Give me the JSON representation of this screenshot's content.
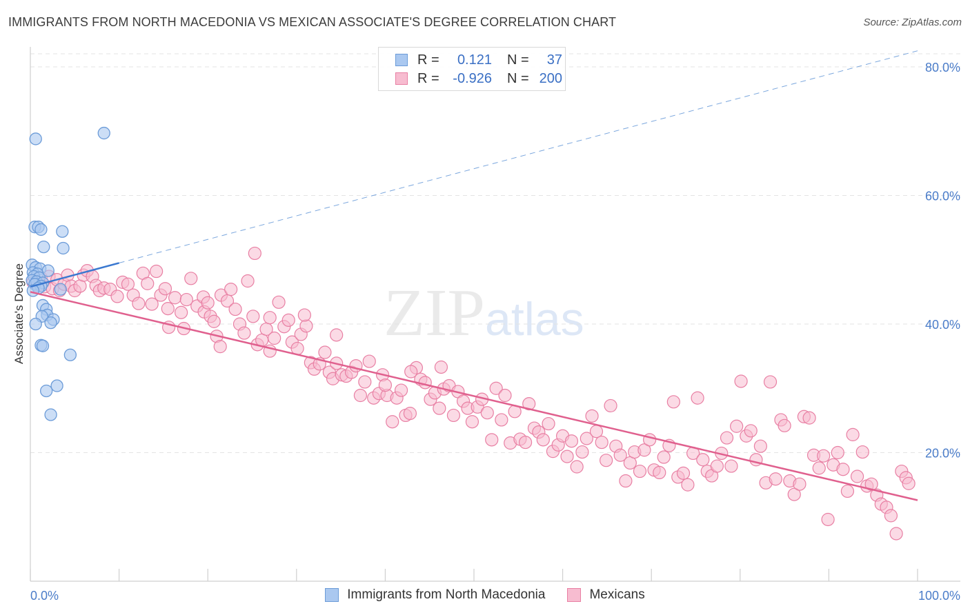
{
  "title": "IMMIGRANTS FROM NORTH MACEDONIA VS MEXICAN ASSOCIATE'S DEGREE CORRELATION CHART",
  "source": "Source: ZipAtlas.com",
  "watermark": {
    "zip": "ZIP",
    "atlas": "atlas"
  },
  "legend": {
    "rows": [
      {
        "r_label": "R =",
        "r_value": "0.121",
        "n_label": "N =",
        "n_value": "37",
        "fill": "#aac8f0",
        "stroke": "#6b9bd8"
      },
      {
        "r_label": "R =",
        "r_value": "-0.926",
        "n_label": "N =",
        "n_value": "200",
        "fill": "#f7bcd0",
        "stroke": "#e87fa3"
      }
    ]
  },
  "bottom_legend": [
    {
      "label": "Immigrants from North Macedonia",
      "fill": "#aac8f0",
      "stroke": "#6b9bd8"
    },
    {
      "label": "Mexicans",
      "fill": "#f7bcd0",
      "stroke": "#e87fa3"
    }
  ],
  "chart_data": {
    "type": "scatter",
    "title": "IMMIGRANTS FROM NORTH MACEDONIA VS MEXICAN ASSOCIATE'S DEGREE CORRELATION CHART",
    "xlabel": "",
    "ylabel": "Associate's Degree",
    "xlim": [
      0,
      100
    ],
    "ylim": [
      0,
      80
    ],
    "x_tick_labels": [
      "0.0%",
      "100.0%"
    ],
    "y_ticks": [
      20,
      40,
      60,
      80
    ],
    "y_tick_labels": [
      "20.0%",
      "40.0%",
      "60.0%",
      "80.0%"
    ],
    "grid": true,
    "series": [
      {
        "name": "Immigrants from North Macedonia",
        "color": "#6b9bd8",
        "fill": "#aac8f0",
        "trend": {
          "x0": 0,
          "y0": 45.8,
          "x1": 10,
          "y1": 49.5,
          "dashed_to_x": 100,
          "dashed_to_y": 82.5,
          "color": "#3a78d0"
        },
        "points": [
          [
            0.6,
            68.8
          ],
          [
            8.3,
            69.7
          ],
          [
            0.5,
            55.1
          ],
          [
            0.9,
            55.1
          ],
          [
            1.2,
            54.7
          ],
          [
            3.6,
            54.4
          ],
          [
            1.5,
            52.0
          ],
          [
            3.7,
            51.8
          ],
          [
            0.2,
            49.2
          ],
          [
            0.6,
            48.8
          ],
          [
            1.1,
            48.6
          ],
          [
            2.0,
            48.3
          ],
          [
            0.3,
            48.0
          ],
          [
            0.8,
            47.8
          ],
          [
            0.4,
            47.4
          ],
          [
            1.0,
            47.2
          ],
          [
            0.2,
            46.8
          ],
          [
            0.7,
            46.6
          ],
          [
            1.4,
            46.4
          ],
          [
            0.5,
            46.2
          ],
          [
            1.2,
            45.9
          ],
          [
            0.9,
            45.6
          ],
          [
            3.4,
            45.4
          ],
          [
            0.3,
            45.2
          ],
          [
            1.4,
            42.9
          ],
          [
            1.8,
            42.3
          ],
          [
            1.9,
            41.4
          ],
          [
            1.3,
            41.2
          ],
          [
            2.6,
            40.7
          ],
          [
            2.3,
            40.2
          ],
          [
            0.6,
            40.0
          ],
          [
            1.2,
            36.7
          ],
          [
            1.4,
            36.6
          ],
          [
            4.5,
            35.2
          ],
          [
            3.0,
            30.4
          ],
          [
            1.8,
            29.6
          ],
          [
            2.3,
            25.9
          ]
        ]
      },
      {
        "name": "Mexicans",
        "color": "#e87fa3",
        "fill": "#f7bcd0",
        "trend": {
          "x0": 0,
          "y0": 45.0,
          "x1": 100,
          "y1": 12.6,
          "color": "#e0608e"
        },
        "points": [
          [
            0.3,
            46.5
          ],
          [
            0.8,
            46.0
          ],
          [
            1.2,
            47.2
          ],
          [
            1.6,
            45.8
          ],
          [
            2.1,
            47.4
          ],
          [
            2.5,
            45.5
          ],
          [
            3.0,
            46.9
          ],
          [
            3.3,
            45.2
          ],
          [
            3.8,
            46.2
          ],
          [
            4.2,
            47.6
          ],
          [
            4.6,
            45.9
          ],
          [
            5.0,
            45.2
          ],
          [
            5.6,
            45.9
          ],
          [
            6.0,
            47.6
          ],
          [
            6.4,
            48.3
          ],
          [
            7.0,
            47.4
          ],
          [
            7.4,
            46.0
          ],
          [
            7.8,
            45.2
          ],
          [
            8.3,
            45.6
          ],
          [
            9.0,
            45.4
          ],
          [
            9.8,
            44.3
          ],
          [
            10.4,
            46.5
          ],
          [
            11.0,
            46.2
          ],
          [
            11.6,
            44.5
          ],
          [
            12.2,
            43.2
          ],
          [
            12.7,
            47.9
          ],
          [
            13.2,
            46.3
          ],
          [
            13.7,
            43.1
          ],
          [
            14.2,
            48.2
          ],
          [
            14.7,
            44.5
          ],
          [
            15.2,
            45.5
          ],
          [
            15.5,
            42.4
          ],
          [
            15.6,
            39.5
          ],
          [
            16.3,
            44.1
          ],
          [
            17.0,
            41.8
          ],
          [
            17.3,
            39.3
          ],
          [
            17.6,
            43.8
          ],
          [
            18.1,
            47.1
          ],
          [
            18.8,
            42.8
          ],
          [
            19.5,
            44.2
          ],
          [
            19.6,
            41.9
          ],
          [
            20.0,
            43.3
          ],
          [
            20.3,
            41.2
          ],
          [
            20.7,
            40.4
          ],
          [
            21.0,
            38.1
          ],
          [
            21.5,
            44.5
          ],
          [
            22.2,
            43.6
          ],
          [
            22.6,
            45.4
          ],
          [
            23.1,
            42.3
          ],
          [
            23.6,
            40.0
          ],
          [
            24.1,
            38.6
          ],
          [
            24.5,
            46.7
          ],
          [
            25.1,
            41.2
          ],
          [
            25.6,
            36.8
          ],
          [
            26.1,
            37.5
          ],
          [
            26.6,
            39.2
          ],
          [
            27.0,
            35.8
          ],
          [
            27.5,
            37.8
          ],
          [
            28.0,
            43.4
          ],
          [
            28.6,
            39.6
          ],
          [
            29.1,
            40.6
          ],
          [
            29.5,
            37.2
          ],
          [
            30.1,
            36.2
          ],
          [
            30.5,
            38.4
          ],
          [
            31.1,
            39.7
          ],
          [
            31.6,
            34.0
          ],
          [
            32.0,
            33.0
          ],
          [
            32.6,
            33.8
          ],
          [
            33.2,
            35.6
          ],
          [
            33.7,
            32.5
          ],
          [
            34.1,
            31.5
          ],
          [
            34.5,
            38.3
          ],
          [
            35.1,
            32.1
          ],
          [
            35.6,
            31.9
          ],
          [
            36.2,
            32.5
          ],
          [
            36.7,
            33.5
          ],
          [
            37.2,
            28.9
          ],
          [
            37.7,
            31.0
          ],
          [
            38.2,
            34.2
          ],
          [
            38.7,
            28.5
          ],
          [
            39.3,
            29.2
          ],
          [
            39.7,
            32.1
          ],
          [
            40.2,
            28.9
          ],
          [
            40.8,
            24.8
          ],
          [
            41.3,
            28.5
          ],
          [
            41.8,
            29.7
          ],
          [
            42.3,
            25.8
          ],
          [
            42.8,
            26.1
          ],
          [
            43.5,
            33.2
          ],
          [
            44.0,
            31.4
          ],
          [
            44.5,
            30.9
          ],
          [
            45.1,
            28.3
          ],
          [
            45.6,
            29.3
          ],
          [
            46.1,
            26.9
          ],
          [
            46.6,
            29.9
          ],
          [
            47.2,
            30.4
          ],
          [
            47.7,
            25.8
          ],
          [
            48.2,
            29.5
          ],
          [
            48.8,
            28.0
          ],
          [
            49.3,
            26.9
          ],
          [
            49.8,
            24.8
          ],
          [
            50.4,
            27.1
          ],
          [
            50.9,
            28.3
          ],
          [
            51.5,
            26.2
          ],
          [
            52.0,
            22.0
          ],
          [
            52.5,
            30.0
          ],
          [
            53.1,
            25.1
          ],
          [
            53.5,
            28.9
          ],
          [
            54.1,
            21.5
          ],
          [
            54.6,
            26.4
          ],
          [
            55.2,
            22.1
          ],
          [
            55.8,
            21.6
          ],
          [
            56.2,
            27.6
          ],
          [
            56.8,
            23.8
          ],
          [
            57.3,
            23.2
          ],
          [
            57.8,
            22.0
          ],
          [
            58.4,
            24.5
          ],
          [
            58.9,
            20.2
          ],
          [
            59.5,
            21.2
          ],
          [
            60.0,
            22.6
          ],
          [
            60.5,
            19.4
          ],
          [
            61.0,
            21.8
          ],
          [
            61.6,
            17.8
          ],
          [
            62.2,
            20.1
          ],
          [
            62.7,
            22.2
          ],
          [
            63.3,
            25.7
          ],
          [
            63.8,
            23.3
          ],
          [
            64.4,
            21.6
          ],
          [
            64.9,
            18.8
          ],
          [
            65.4,
            27.3
          ],
          [
            66.0,
            21.0
          ],
          [
            66.5,
            19.6
          ],
          [
            67.1,
            15.6
          ],
          [
            67.6,
            18.4
          ],
          [
            68.1,
            20.1
          ],
          [
            68.7,
            17.1
          ],
          [
            69.2,
            20.4
          ],
          [
            69.8,
            22.0
          ],
          [
            70.3,
            17.3
          ],
          [
            70.9,
            16.9
          ],
          [
            71.4,
            19.3
          ],
          [
            72.0,
            21.1
          ],
          [
            72.5,
            27.9
          ],
          [
            73.0,
            16.2
          ],
          [
            73.6,
            16.8
          ],
          [
            74.1,
            15.0
          ],
          [
            74.7,
            19.9
          ],
          [
            75.2,
            28.5
          ],
          [
            75.8,
            18.9
          ],
          [
            76.3,
            17.1
          ],
          [
            76.8,
            16.4
          ],
          [
            77.4,
            17.9
          ],
          [
            77.9,
            19.9
          ],
          [
            78.5,
            22.3
          ],
          [
            79.0,
            17.9
          ],
          [
            79.6,
            24.1
          ],
          [
            80.1,
            31.1
          ],
          [
            80.7,
            22.6
          ],
          [
            81.2,
            23.4
          ],
          [
            81.8,
            18.9
          ],
          [
            82.3,
            21.0
          ],
          [
            82.9,
            15.3
          ],
          [
            83.4,
            31.0
          ],
          [
            84.0,
            15.9
          ],
          [
            84.6,
            25.1
          ],
          [
            85.0,
            24.2
          ],
          [
            85.6,
            15.6
          ],
          [
            86.1,
            13.5
          ],
          [
            86.7,
            15.1
          ],
          [
            87.2,
            25.6
          ],
          [
            87.8,
            25.4
          ],
          [
            88.3,
            19.6
          ],
          [
            88.9,
            17.6
          ],
          [
            89.4,
            19.5
          ],
          [
            89.9,
            9.6
          ],
          [
            90.5,
            18.1
          ],
          [
            91.0,
            20.0
          ],
          [
            91.6,
            17.4
          ],
          [
            92.1,
            14.0
          ],
          [
            92.7,
            22.8
          ],
          [
            93.2,
            16.3
          ],
          [
            93.8,
            20.1
          ],
          [
            94.3,
            14.8
          ],
          [
            94.8,
            15.1
          ],
          [
            95.4,
            13.4
          ],
          [
            95.9,
            12.0
          ],
          [
            96.5,
            11.5
          ],
          [
            97.0,
            10.2
          ],
          [
            97.6,
            7.4
          ],
          [
            98.2,
            17.1
          ],
          [
            98.7,
            16.1
          ],
          [
            99.0,
            15.2
          ],
          [
            27.0,
            41.0
          ],
          [
            21.4,
            36.5
          ],
          [
            25.3,
            51.0
          ],
          [
            34.5,
            33.9
          ],
          [
            40.0,
            30.5
          ],
          [
            46.3,
            33.3
          ],
          [
            30.9,
            41.4
          ],
          [
            42.9,
            32.6
          ]
        ]
      }
    ]
  }
}
